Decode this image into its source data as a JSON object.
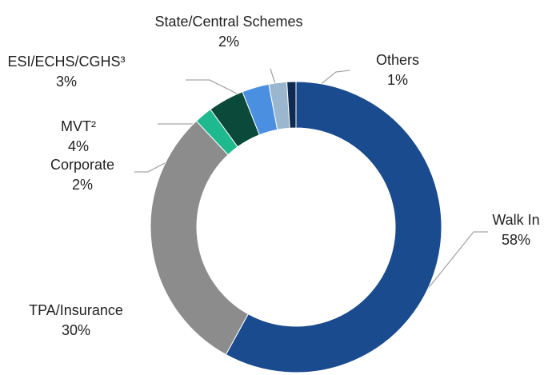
{
  "chart_data": {
    "type": "donut",
    "categories": [
      "Walk In",
      "TPA/Insurance",
      "Corporate",
      "MVT²",
      "ESI/ECHS/CGHS³",
      "State/Central Schemes",
      "Others"
    ],
    "values": [
      58,
      30,
      2,
      4,
      3,
      2,
      1
    ],
    "value_labels": [
      "58%",
      "30%",
      "2%",
      "4%",
      "3%",
      "2%",
      "1%"
    ],
    "colors": [
      "#1a4b8e",
      "#8c8c8c",
      "#1fb98f",
      "#0b4a3a",
      "#4a8fe0",
      "#9bb7cf",
      "#102b52"
    ]
  }
}
